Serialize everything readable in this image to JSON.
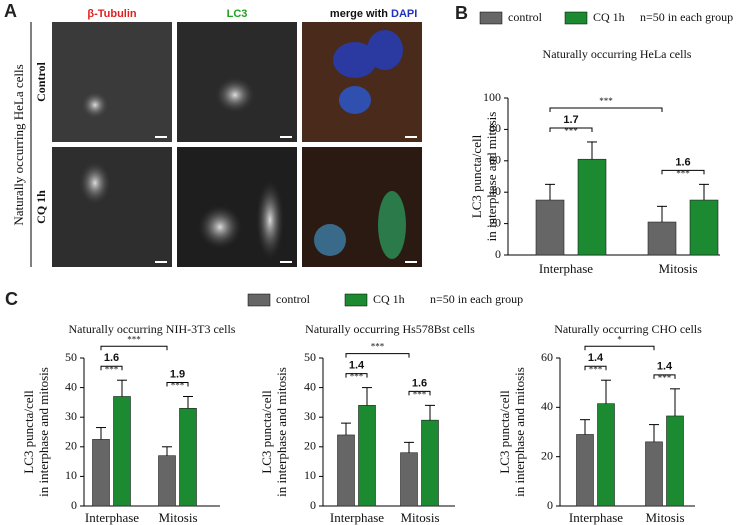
{
  "panel_a": {
    "label": "A",
    "columns": [
      "β-Tubulin",
      "LC3",
      "merge with",
      "DAPI"
    ],
    "row_group": "Naturally occurring HeLa cells",
    "rows": [
      "Control",
      "CQ 1h"
    ]
  },
  "chart_data": [
    {
      "type": "bar",
      "panel": "B",
      "title": "Naturally occurring HeLa cells",
      "note": "n=50 in each group",
      "ylabel": [
        "LC3 puncta/cell",
        "in interphase and mitosis"
      ],
      "categories": [
        "Interphase",
        "Mitosis"
      ],
      "series": [
        {
          "name": "control",
          "color": "#666666",
          "values": [
            35,
            21
          ],
          "errors": [
            10,
            10
          ]
        },
        {
          "name": "CQ 1h",
          "color": "#1b8a30",
          "values": [
            61,
            35
          ],
          "errors": [
            11,
            10
          ]
        }
      ],
      "fold": [
        1.7,
        1.6
      ],
      "fold_sig": [
        "***",
        "***"
      ],
      "overall_sig": "***",
      "ylim": [
        0,
        100
      ],
      "yticks": [
        0,
        20,
        40,
        60,
        80,
        100
      ]
    },
    {
      "type": "bar",
      "panel": "C",
      "title": "Naturally occurring NIH-3T3 cells",
      "note": "n=50 in each group",
      "ylabel": [
        "LC3 puncta/cell",
        "in interphase and mitosis"
      ],
      "categories": [
        "Interphase",
        "Mitosis"
      ],
      "series": [
        {
          "name": "control",
          "color": "#666666",
          "values": [
            22.5,
            17
          ],
          "errors": [
            4,
            3
          ]
        },
        {
          "name": "CQ 1h",
          "color": "#1b8a30",
          "values": [
            37,
            33
          ],
          "errors": [
            5.5,
            4
          ]
        }
      ],
      "fold": [
        1.6,
        1.9
      ],
      "fold_sig": [
        "***",
        "***"
      ],
      "overall_sig": "***",
      "ylim": [
        0,
        50
      ],
      "yticks": [
        0,
        10,
        20,
        30,
        40,
        50
      ]
    },
    {
      "type": "bar",
      "title": "Naturally occurring Hs578Bst cells",
      "ylabel": [
        "LC3 puncta/cell",
        "in interphase and mitosis"
      ],
      "categories": [
        "Interphase",
        "Mitosis"
      ],
      "series": [
        {
          "name": "control",
          "color": "#666666",
          "values": [
            24,
            18
          ],
          "errors": [
            4,
            3.5
          ]
        },
        {
          "name": "CQ 1h",
          "color": "#1b8a30",
          "values": [
            34,
            29
          ],
          "errors": [
            6,
            5
          ]
        }
      ],
      "fold": [
        1.4,
        1.6
      ],
      "fold_sig": [
        "***",
        "***"
      ],
      "overall_sig": "***",
      "ylim": [
        0,
        50
      ],
      "yticks": [
        0,
        10,
        20,
        30,
        40,
        50
      ]
    },
    {
      "type": "bar",
      "title": "Naturally occurring CHO cells",
      "ylabel": [
        "LC3 puncta/cell",
        "in interphase and mitosis"
      ],
      "categories": [
        "Interphase",
        "Mitosis"
      ],
      "series": [
        {
          "name": "control",
          "color": "#666666",
          "values": [
            29,
            26
          ],
          "errors": [
            6,
            7
          ]
        },
        {
          "name": "CQ 1h",
          "color": "#1b8a30",
          "values": [
            41.5,
            36.5
          ],
          "errors": [
            9.5,
            11
          ]
        }
      ],
      "fold": [
        1.4,
        1.4
      ],
      "fold_sig": [
        "***",
        "***"
      ],
      "overall_sig": "*",
      "ylim": [
        0,
        60
      ],
      "yticks": [
        0,
        20,
        40,
        60
      ]
    }
  ]
}
